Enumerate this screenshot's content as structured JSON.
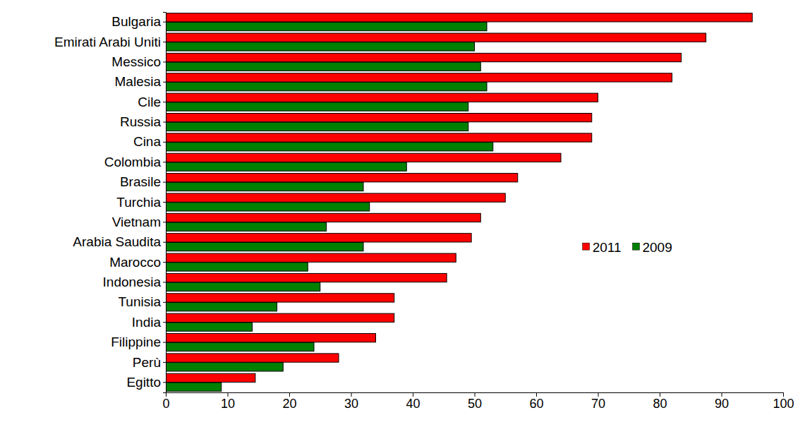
{
  "chart_data": {
    "type": "bar",
    "orientation": "horizontal",
    "categories": [
      "Bulgaria",
      "Emirati Arabi Uniti",
      "Messico",
      "Malesia",
      "Cile",
      "Russia",
      "Cina",
      "Colombia",
      "Brasile",
      "Turchia",
      "Vietnam",
      "Arabia Saudita",
      "Marocco",
      "Indonesia",
      "Tunisia",
      "India",
      "Filippine",
      "Perù",
      "Egitto"
    ],
    "series": [
      {
        "name": "2011",
        "color": "#ff0000",
        "values": [
          95,
          87.5,
          83.5,
          82,
          70,
          69,
          69,
          64,
          57,
          55,
          51,
          49.5,
          47,
          45.5,
          37,
          37,
          34,
          28,
          14.5
        ]
      },
      {
        "name": "2009",
        "color": "#008000",
        "values": [
          52,
          50,
          51,
          52,
          49,
          49,
          53,
          39,
          32,
          33,
          26,
          32,
          23,
          25,
          18,
          14,
          24,
          19,
          9
        ]
      }
    ],
    "xlim": [
      0,
      100
    ],
    "xticks": [
      0,
      10,
      20,
      30,
      40,
      50,
      60,
      70,
      80,
      90,
      100
    ],
    "grid": false,
    "legend": "right"
  }
}
